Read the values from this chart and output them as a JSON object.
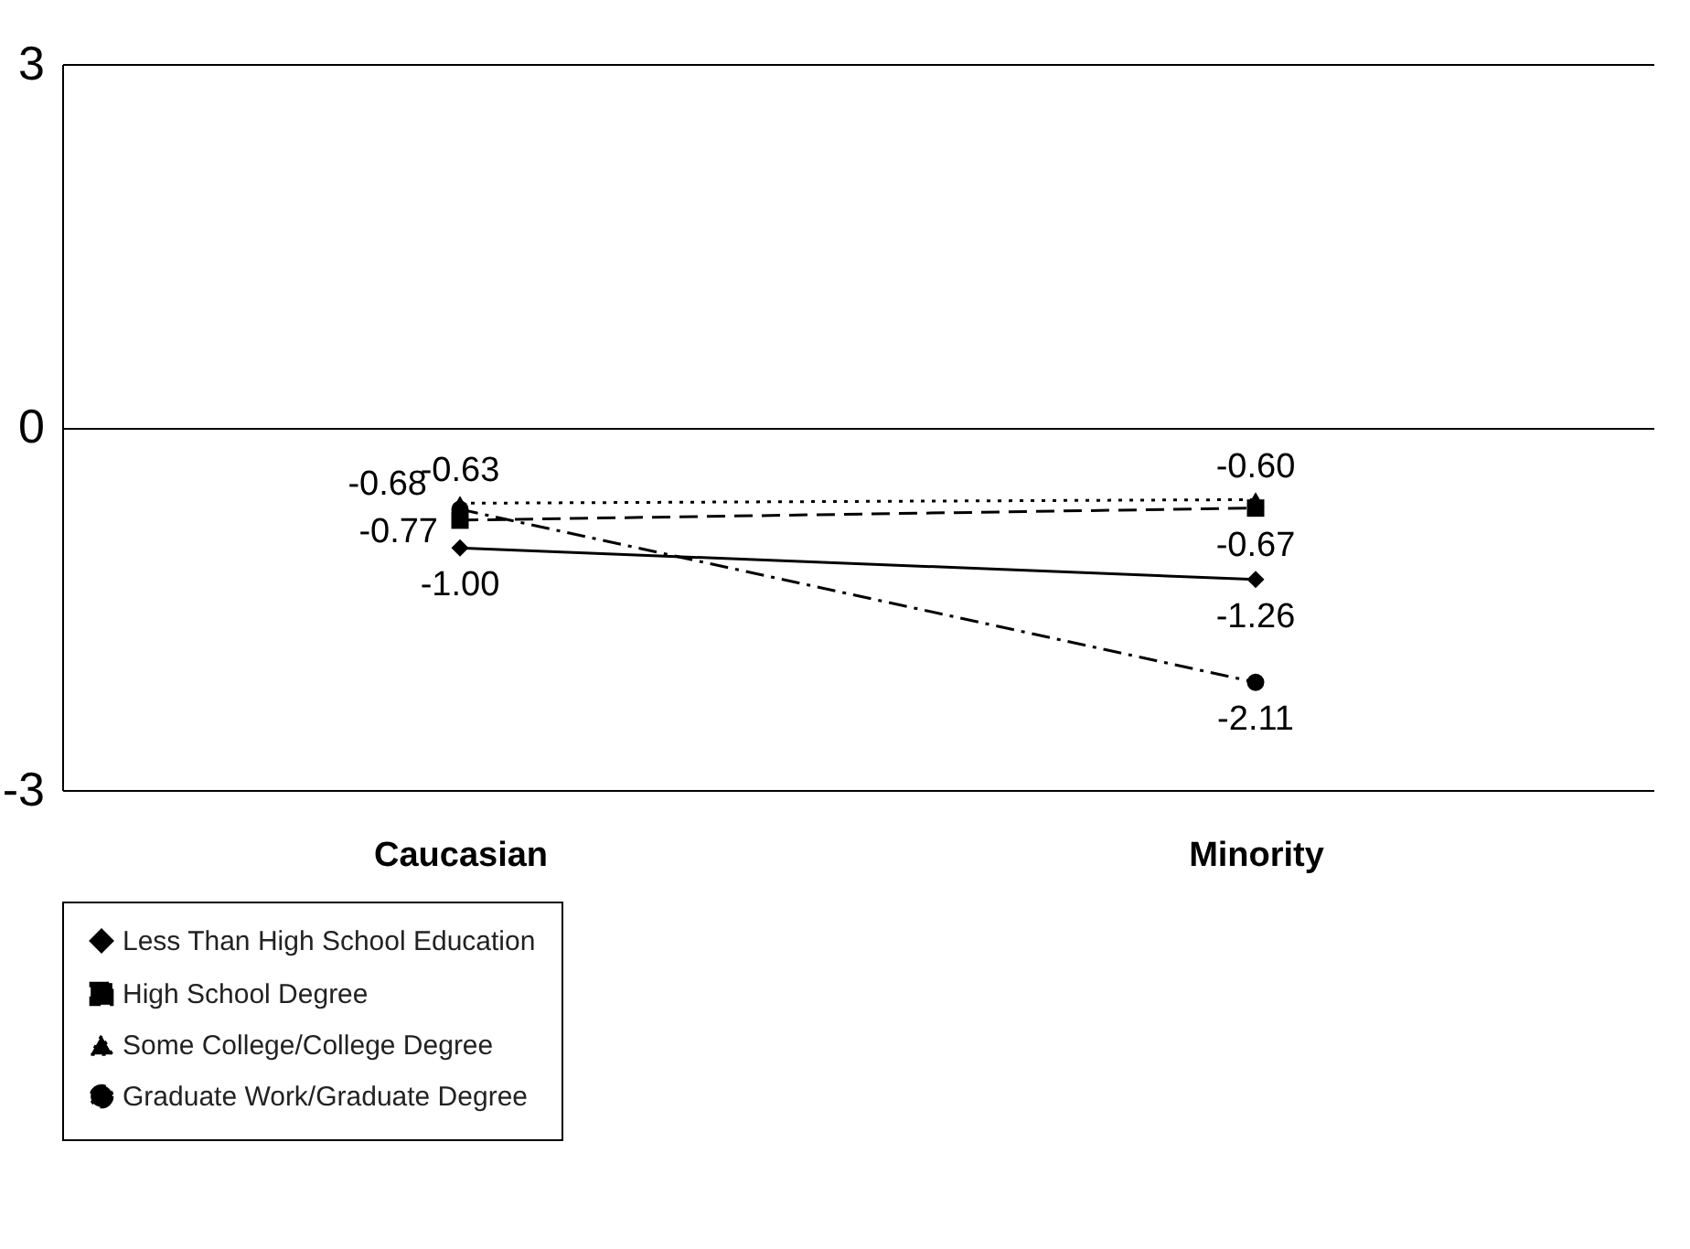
{
  "chart_data": {
    "type": "line",
    "categories": [
      "Caucasian",
      "Minority"
    ],
    "series": [
      {
        "name": "Less Than High School Education",
        "color": "#000000",
        "values": [
          -1.0,
          -1.26
        ],
        "value_labels": [
          "-1.00",
          "-1.26"
        ],
        "marker": "diamond",
        "line_style": "solid"
      },
      {
        "name": "High School Degree",
        "color": "#000000",
        "values": [
          -0.77,
          -0.67
        ],
        "value_labels": [
          "-0.77",
          "-0.67"
        ],
        "marker": "square",
        "line_style": "dashed"
      },
      {
        "name": "Some College/College Degree",
        "color": "#000000",
        "values": [
          -0.63,
          -0.6
        ],
        "value_labels": [
          "-0.63",
          "-0.60"
        ],
        "marker": "triangle",
        "line_style": "dotted"
      },
      {
        "name": "Graduate Work/Graduate Degree",
        "color": "#000000",
        "values": [
          -0.68,
          -2.11
        ],
        "value_labels": [
          "-0.68",
          "-2.11"
        ],
        "marker": "circle",
        "line_style": "dashdot"
      }
    ],
    "ylim": [
      -3,
      3
    ],
    "yticks": [
      -3,
      0,
      3
    ],
    "grid": "y",
    "legend": "bottom"
  }
}
